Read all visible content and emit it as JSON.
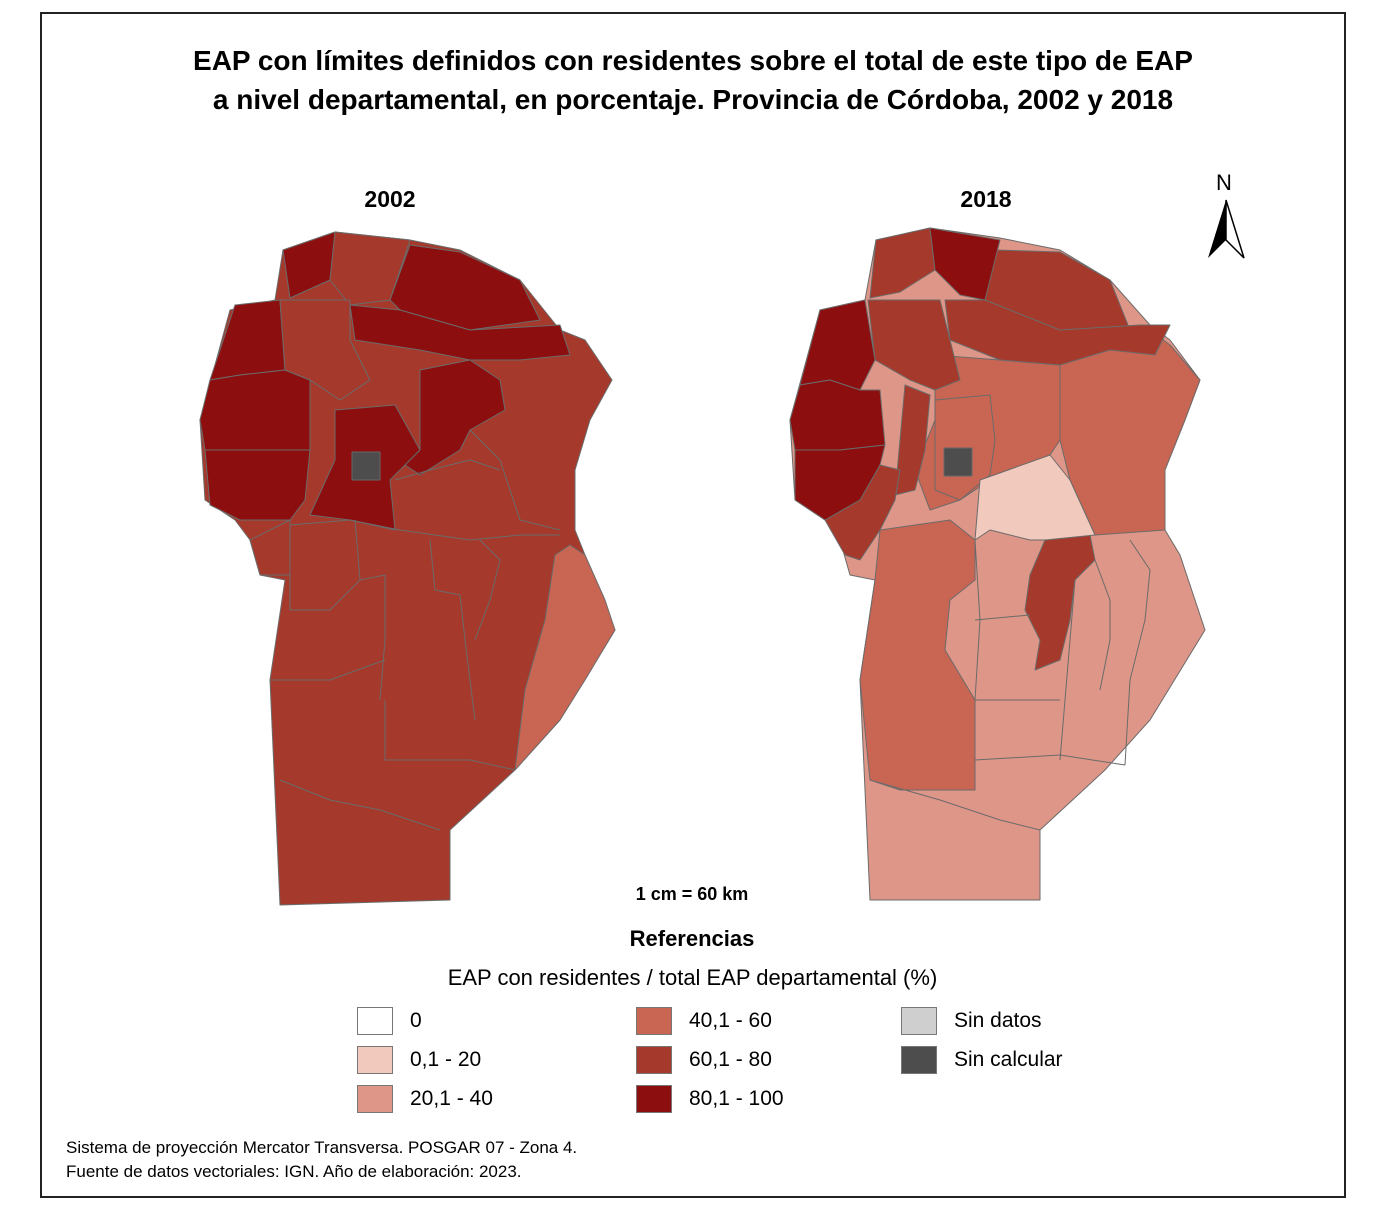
{
  "title": {
    "line1": "EAP con límites definidos con residentes sobre el total de este tipo de EAP",
    "line2": "a nivel departamental, en porcentaje. Provincia de Córdoba, 2002 y 2018"
  },
  "maps": {
    "left_year": "2002",
    "right_year": "2018"
  },
  "north_arrow": {
    "label": "N"
  },
  "scale": "1 cm = 60 km",
  "legend": {
    "title": "Referencias",
    "subtitle": "EAP con residentes / total EAP departamental (%)",
    "items": [
      {
        "label": "0",
        "color": "#ffffff"
      },
      {
        "label": "0,1 - 20",
        "color": "#f2c9bd"
      },
      {
        "label": "20,1 - 40",
        "color": "#dd9687"
      },
      {
        "label": "40,1 - 60",
        "color": "#c96553"
      },
      {
        "label": "60,1 - 80",
        "color": "#a5392b"
      },
      {
        "label": "80,1 - 100",
        "color": "#8c0e0e"
      },
      {
        "label": "Sin datos",
        "color": "#cfcfcf"
      },
      {
        "label": "Sin calcular",
        "color": "#4d4d4d"
      }
    ]
  },
  "footer": {
    "line1": "Sistema de proyección Mercator Transversa. POSGAR 07 - Zona 4.",
    "line2": "Fuente de datos vectoriales: IGN. Año de elaboración: 2023."
  }
}
